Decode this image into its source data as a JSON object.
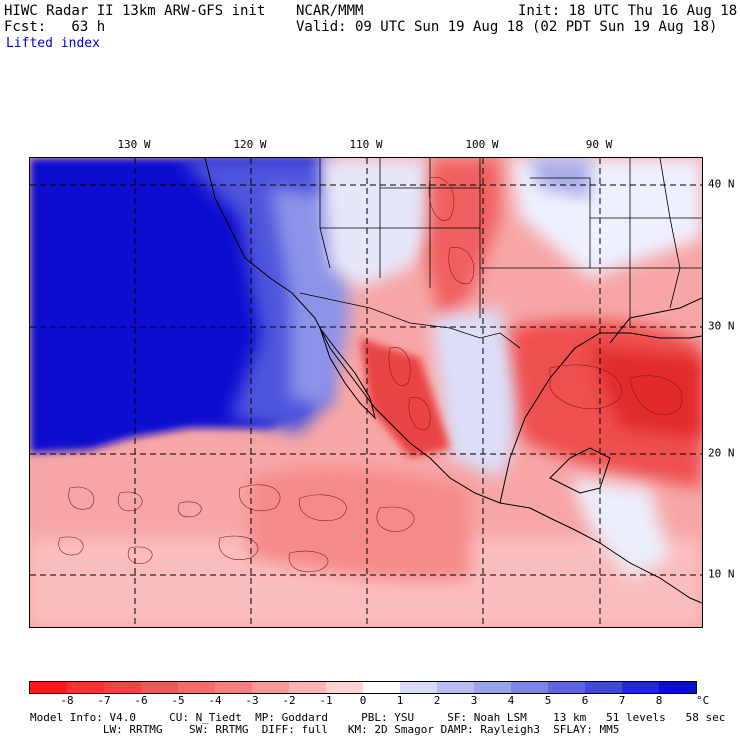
{
  "header": {
    "line1_left": "HIWC Radar II 13km ARW-GFS init",
    "line1_mid": "NCAR/MMM",
    "line1_right": "Init: 18 UTC Thu 16 Aug 18",
    "line2_left": "Fcst:   63 h",
    "line2_right": "Valid: 09 UTC Sun 19 Aug 18 (02 PDT Sun 19 Aug 18)",
    "field": "Lifted index"
  },
  "axes": {
    "lon_labels": [
      "130 W",
      "120 W",
      "110 W",
      "100 W",
      "90 W"
    ],
    "lat_labels": [
      "40 N",
      "30 N",
      "20 N",
      "10 N"
    ]
  },
  "legend": {
    "ticks": [
      "-8",
      "-7",
      "-6",
      "-5",
      "-4",
      "-3",
      "-2",
      "-1",
      "0",
      "1",
      "2",
      "3",
      "4",
      "5",
      "6",
      "7",
      "8"
    ],
    "unit": "°C",
    "colors": [
      "#ff1a1a",
      "#ff3030",
      "#f24444",
      "#f25858",
      "#f56c6c",
      "#f58080",
      "#f89898",
      "#fbb4b4",
      "#fdd4d4",
      "#ffffff",
      "#d8daf6",
      "#b8bcf0",
      "#9da2ec",
      "#7e84e6",
      "#6066e0",
      "#4248dc",
      "#2228d8",
      "#0a10d0"
    ]
  },
  "info": {
    "line1": "Model Info: V4.0     CU: N_Tiedt  MP: Goddard     PBL: YSU     SF: Noah LSM    13 km   51 levels   58 sec",
    "line2": "           LW: RRTMG    SW: RRTMG  DIFF: full   KM: 2D Smagor DAMP: Rayleigh3  SFLAY: MM5"
  }
}
